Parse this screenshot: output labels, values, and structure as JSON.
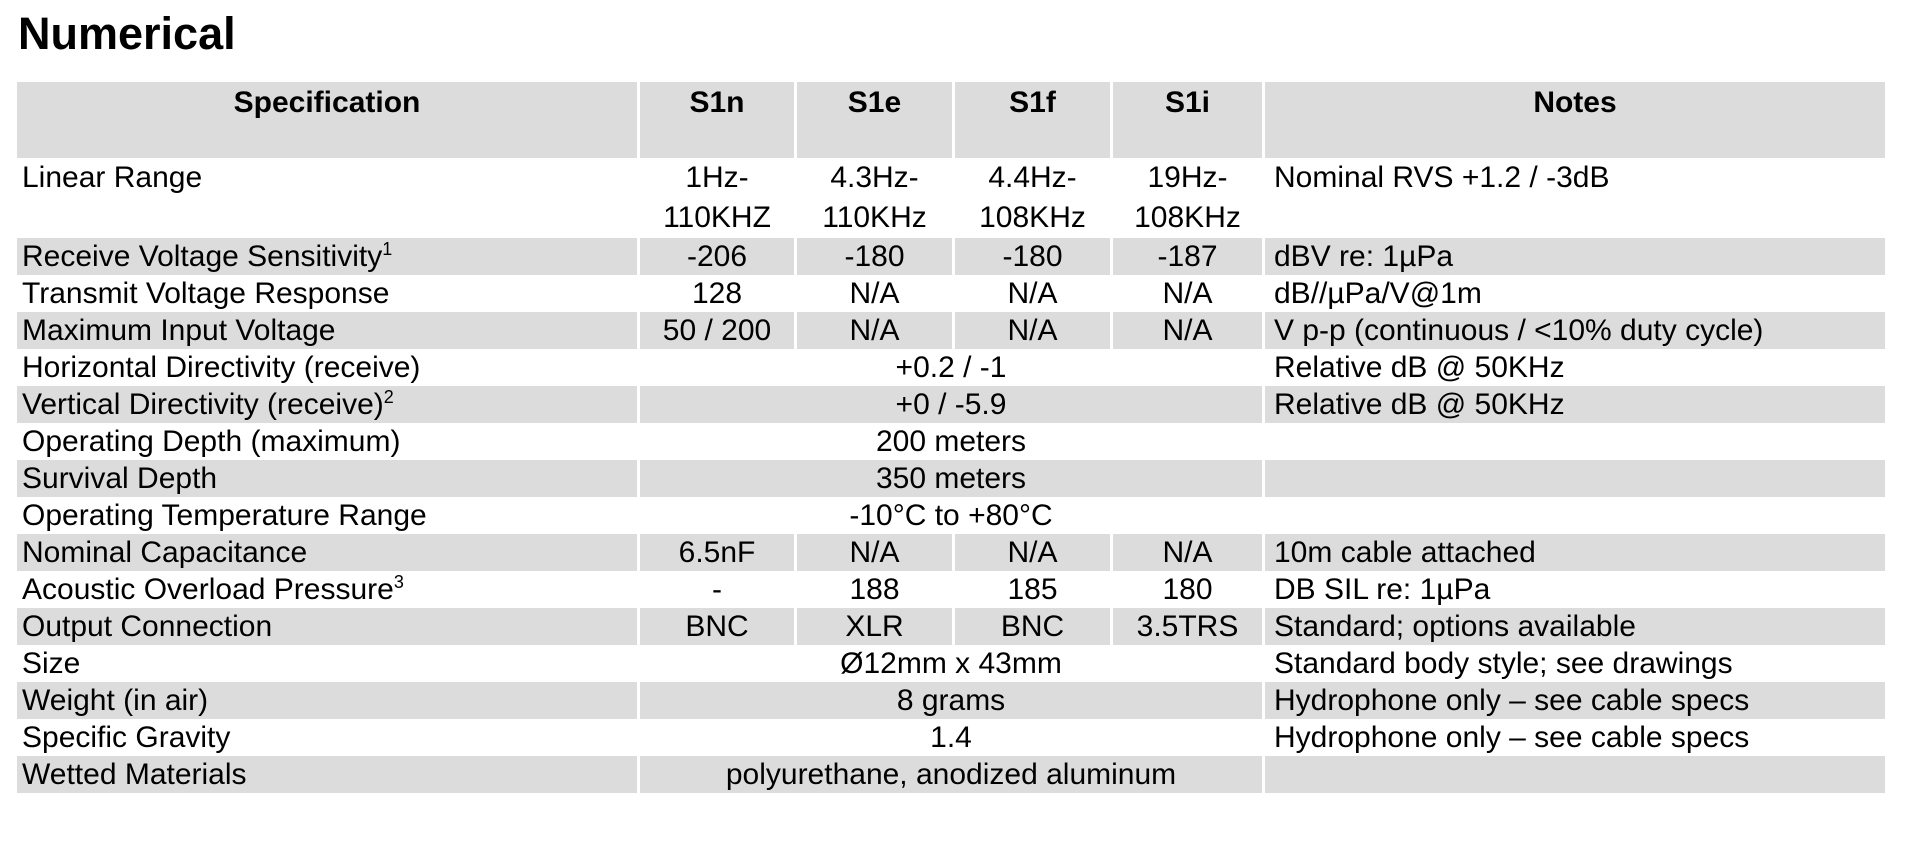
{
  "title": "Numerical",
  "table": {
    "shade_color": "#dcdcdc",
    "columns": [
      "Specification",
      "S1n",
      "S1e",
      "S1f",
      "S1i",
      "Notes"
    ],
    "rows": [
      {
        "label": "Linear Range",
        "sup": "",
        "values": [
          "1Hz-\n110KHZ",
          "4.3Hz-\n110KHz",
          "4.4Hz-\n108KHz",
          "19Hz-\n108KHz"
        ],
        "span": null,
        "note": "Nominal RVS +1.2 / -3dB",
        "shaded": false,
        "tall": true
      },
      {
        "label": "Receive Voltage Sensitivity",
        "sup": "1",
        "values": [
          "-206",
          "-180",
          "-180",
          "-187"
        ],
        "span": null,
        "note": "dBV re: 1µPa",
        "shaded": true,
        "tall": false
      },
      {
        "label": "Transmit Voltage Response",
        "sup": "",
        "values": [
          "128",
          "N/A",
          "N/A",
          "N/A"
        ],
        "span": null,
        "note": "dB//µPa/V@1m",
        "shaded": false,
        "tall": false
      },
      {
        "label": "Maximum Input Voltage",
        "sup": "",
        "values": [
          "50 / 200",
          "N/A",
          "N/A",
          "N/A"
        ],
        "span": null,
        "note": "V p-p (continuous / <10% duty cycle)",
        "shaded": true,
        "tall": false
      },
      {
        "label": "Horizontal Directivity (receive)",
        "sup": "",
        "values": null,
        "span": "+0.2 / -1",
        "note": "Relative dB @ 50KHz",
        "shaded": false,
        "tall": false
      },
      {
        "label": "Vertical Directivity (receive)",
        "sup": "2",
        "values": null,
        "span": "+0 / -5.9",
        "note": "Relative dB @ 50KHz",
        "shaded": true,
        "tall": false
      },
      {
        "label": "Operating Depth (maximum)",
        "sup": "",
        "values": null,
        "span": "200 meters",
        "note": "",
        "shaded": false,
        "tall": false
      },
      {
        "label": "Survival Depth",
        "sup": "",
        "values": null,
        "span": "350 meters",
        "note": "",
        "shaded": true,
        "tall": false
      },
      {
        "label": "Operating Temperature Range",
        "sup": "",
        "values": null,
        "span": "-10°C to +80°C",
        "note": "",
        "shaded": false,
        "tall": false
      },
      {
        "label": "Nominal Capacitance",
        "sup": "",
        "values": [
          "6.5nF",
          "N/A",
          "N/A",
          "N/A"
        ],
        "span": null,
        "note": "10m cable attached",
        "shaded": true,
        "tall": false
      },
      {
        "label": "Acoustic Overload Pressure",
        "sup": "3",
        "values": [
          "-",
          "188",
          "185",
          "180"
        ],
        "span": null,
        "note": "DB SIL re: 1µPa",
        "shaded": false,
        "tall": false
      },
      {
        "label": "Output Connection",
        "sup": "",
        "values": [
          "BNC",
          "XLR",
          "BNC",
          "3.5TRS"
        ],
        "span": null,
        "note": "Standard; options available",
        "shaded": true,
        "tall": false
      },
      {
        "label": "Size",
        "sup": "",
        "values": null,
        "span": "Ø12mm x 43mm",
        "note": "Standard body style; see drawings",
        "shaded": false,
        "tall": false
      },
      {
        "label": "Weight (in air)",
        "sup": "",
        "values": null,
        "span": "8 grams",
        "note": "Hydrophone only – see cable specs",
        "shaded": true,
        "tall": false
      },
      {
        "label": "Specific Gravity",
        "sup": "",
        "values": null,
        "span": "1.4",
        "note": "Hydrophone only – see cable specs",
        "shaded": false,
        "tall": false
      },
      {
        "label": "Wetted Materials",
        "sup": "",
        "values": null,
        "span": "polyurethane, anodized aluminum",
        "note": "",
        "shaded": true,
        "tall": false
      }
    ]
  }
}
